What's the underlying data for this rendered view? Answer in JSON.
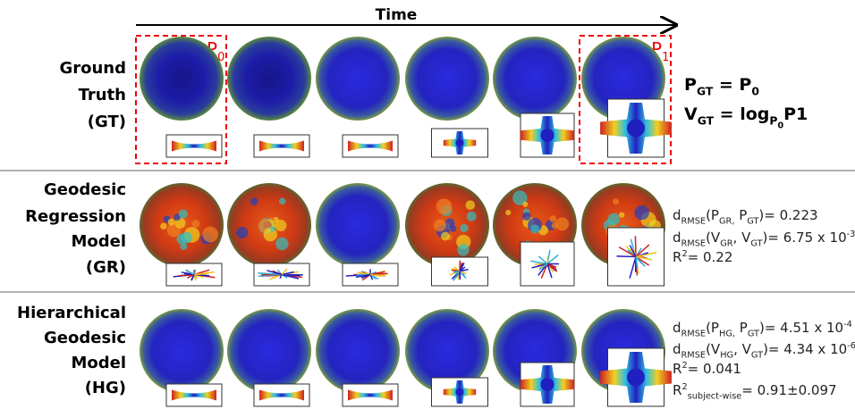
{
  "header": {
    "time_label": "Time"
  },
  "markers": [
    [
      {
        "text": "P"
      },
      {
        "sub": "0"
      }
    ],
    [
      {
        "text": "P"
      },
      {
        "sub": "1"
      }
    ]
  ],
  "rows": [
    {
      "label": [
        "Ground",
        "Truth",
        "(GT)"
      ],
      "lines": [
        [
          {
            "text": "P"
          },
          {
            "sub": "GT"
          },
          {
            "text": " = P"
          },
          {
            "sub": "0"
          }
        ],
        [
          {
            "text": "V"
          },
          {
            "sub": "GT"
          },
          {
            "text": " = log"
          },
          {
            "sub": "P"
          },
          {
            "subsub": "0"
          },
          {
            "text": "P1"
          }
        ]
      ]
    },
    {
      "label": [
        "Geodesic",
        "Regression",
        "Model",
        "(GR)"
      ],
      "lines": [
        [
          {
            "text": "d"
          },
          {
            "sub": "RMSE"
          },
          {
            "text": "(P"
          },
          {
            "sub": "GR,"
          },
          {
            "text": " P"
          },
          {
            "sub": "GT"
          },
          {
            "text": ")= 0.223"
          }
        ],
        [
          {
            "text": "d"
          },
          {
            "sub": "RMSE"
          },
          {
            "text": "(V"
          },
          {
            "sub": "GR"
          },
          {
            "text": ", V"
          },
          {
            "sub": "GT"
          },
          {
            "text": ")= 6.75 x 10"
          },
          {
            "sup": "-3"
          }
        ],
        [
          {
            "text": "R"
          },
          {
            "sup": "2"
          },
          {
            "text": "= 0.22"
          }
        ]
      ]
    },
    {
      "label": [
        "Hierarchical",
        "Geodesic",
        "Model",
        "(HG)"
      ],
      "lines": [
        [
          {
            "text": "d"
          },
          {
            "sub": "RMSE"
          },
          {
            "text": "(P"
          },
          {
            "sub": "HG,"
          },
          {
            "text": " P"
          },
          {
            "sub": "GT"
          },
          {
            "text": ")= 4.51 x 10"
          },
          {
            "sup": "-4"
          }
        ],
        [
          {
            "text": "d"
          },
          {
            "sub": "RMSE"
          },
          {
            "text": "(V"
          },
          {
            "sub": "HG"
          },
          {
            "text": ", V"
          },
          {
            "sub": "GT"
          },
          {
            "text": ")= 4.34 x 10"
          },
          {
            "sup": "-6"
          }
        ],
        [
          {
            "text": "R"
          },
          {
            "sup": "2"
          },
          {
            "text": "= 0.041"
          }
        ],
        [
          {
            "text": "R"
          },
          {
            "sup": "2"
          },
          {
            "sub": "subject-wise"
          },
          {
            "text": "= 0.91±0.097"
          }
        ]
      ]
    }
  ]
}
